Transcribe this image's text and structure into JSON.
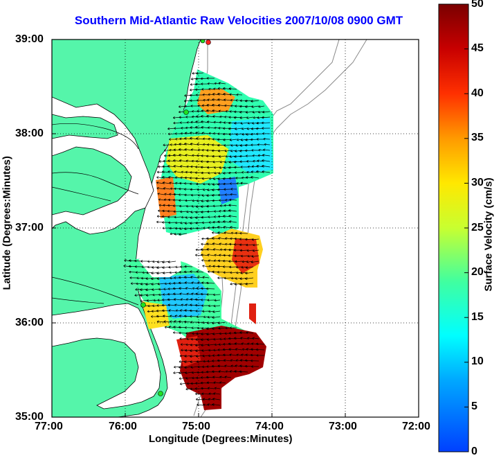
{
  "title": "Southern Mid-Atlantic Raw Velocities 2007/10/08 0900 GMT",
  "xaxis": {
    "label": "Longitude (Degrees:Minutes)",
    "ticks": [
      "77:00",
      "76:00",
      "75:00",
      "74:00",
      "73:00",
      "72:00"
    ]
  },
  "yaxis": {
    "label": "Latitude (Degrees:Minutes)",
    "ticks": [
      "39:00",
      "38:00",
      "37:00",
      "36:00",
      "35:00"
    ]
  },
  "colorbar": {
    "label": "Surface Velocity (cm/s)",
    "ticks": [
      "50",
      "45",
      "40",
      "35",
      "30",
      "25",
      "20",
      "15",
      "10",
      "5",
      "0"
    ],
    "min": 0,
    "max": 50
  },
  "chart_data": {
    "type": "heatmap",
    "xlim": [
      -77,
      -72
    ],
    "ylim": [
      35,
      39
    ],
    "colors": {
      "land": "#55f5aa",
      "title": "#0000ff",
      "coast": "#000000",
      "bathy": "#888888"
    }
  }
}
